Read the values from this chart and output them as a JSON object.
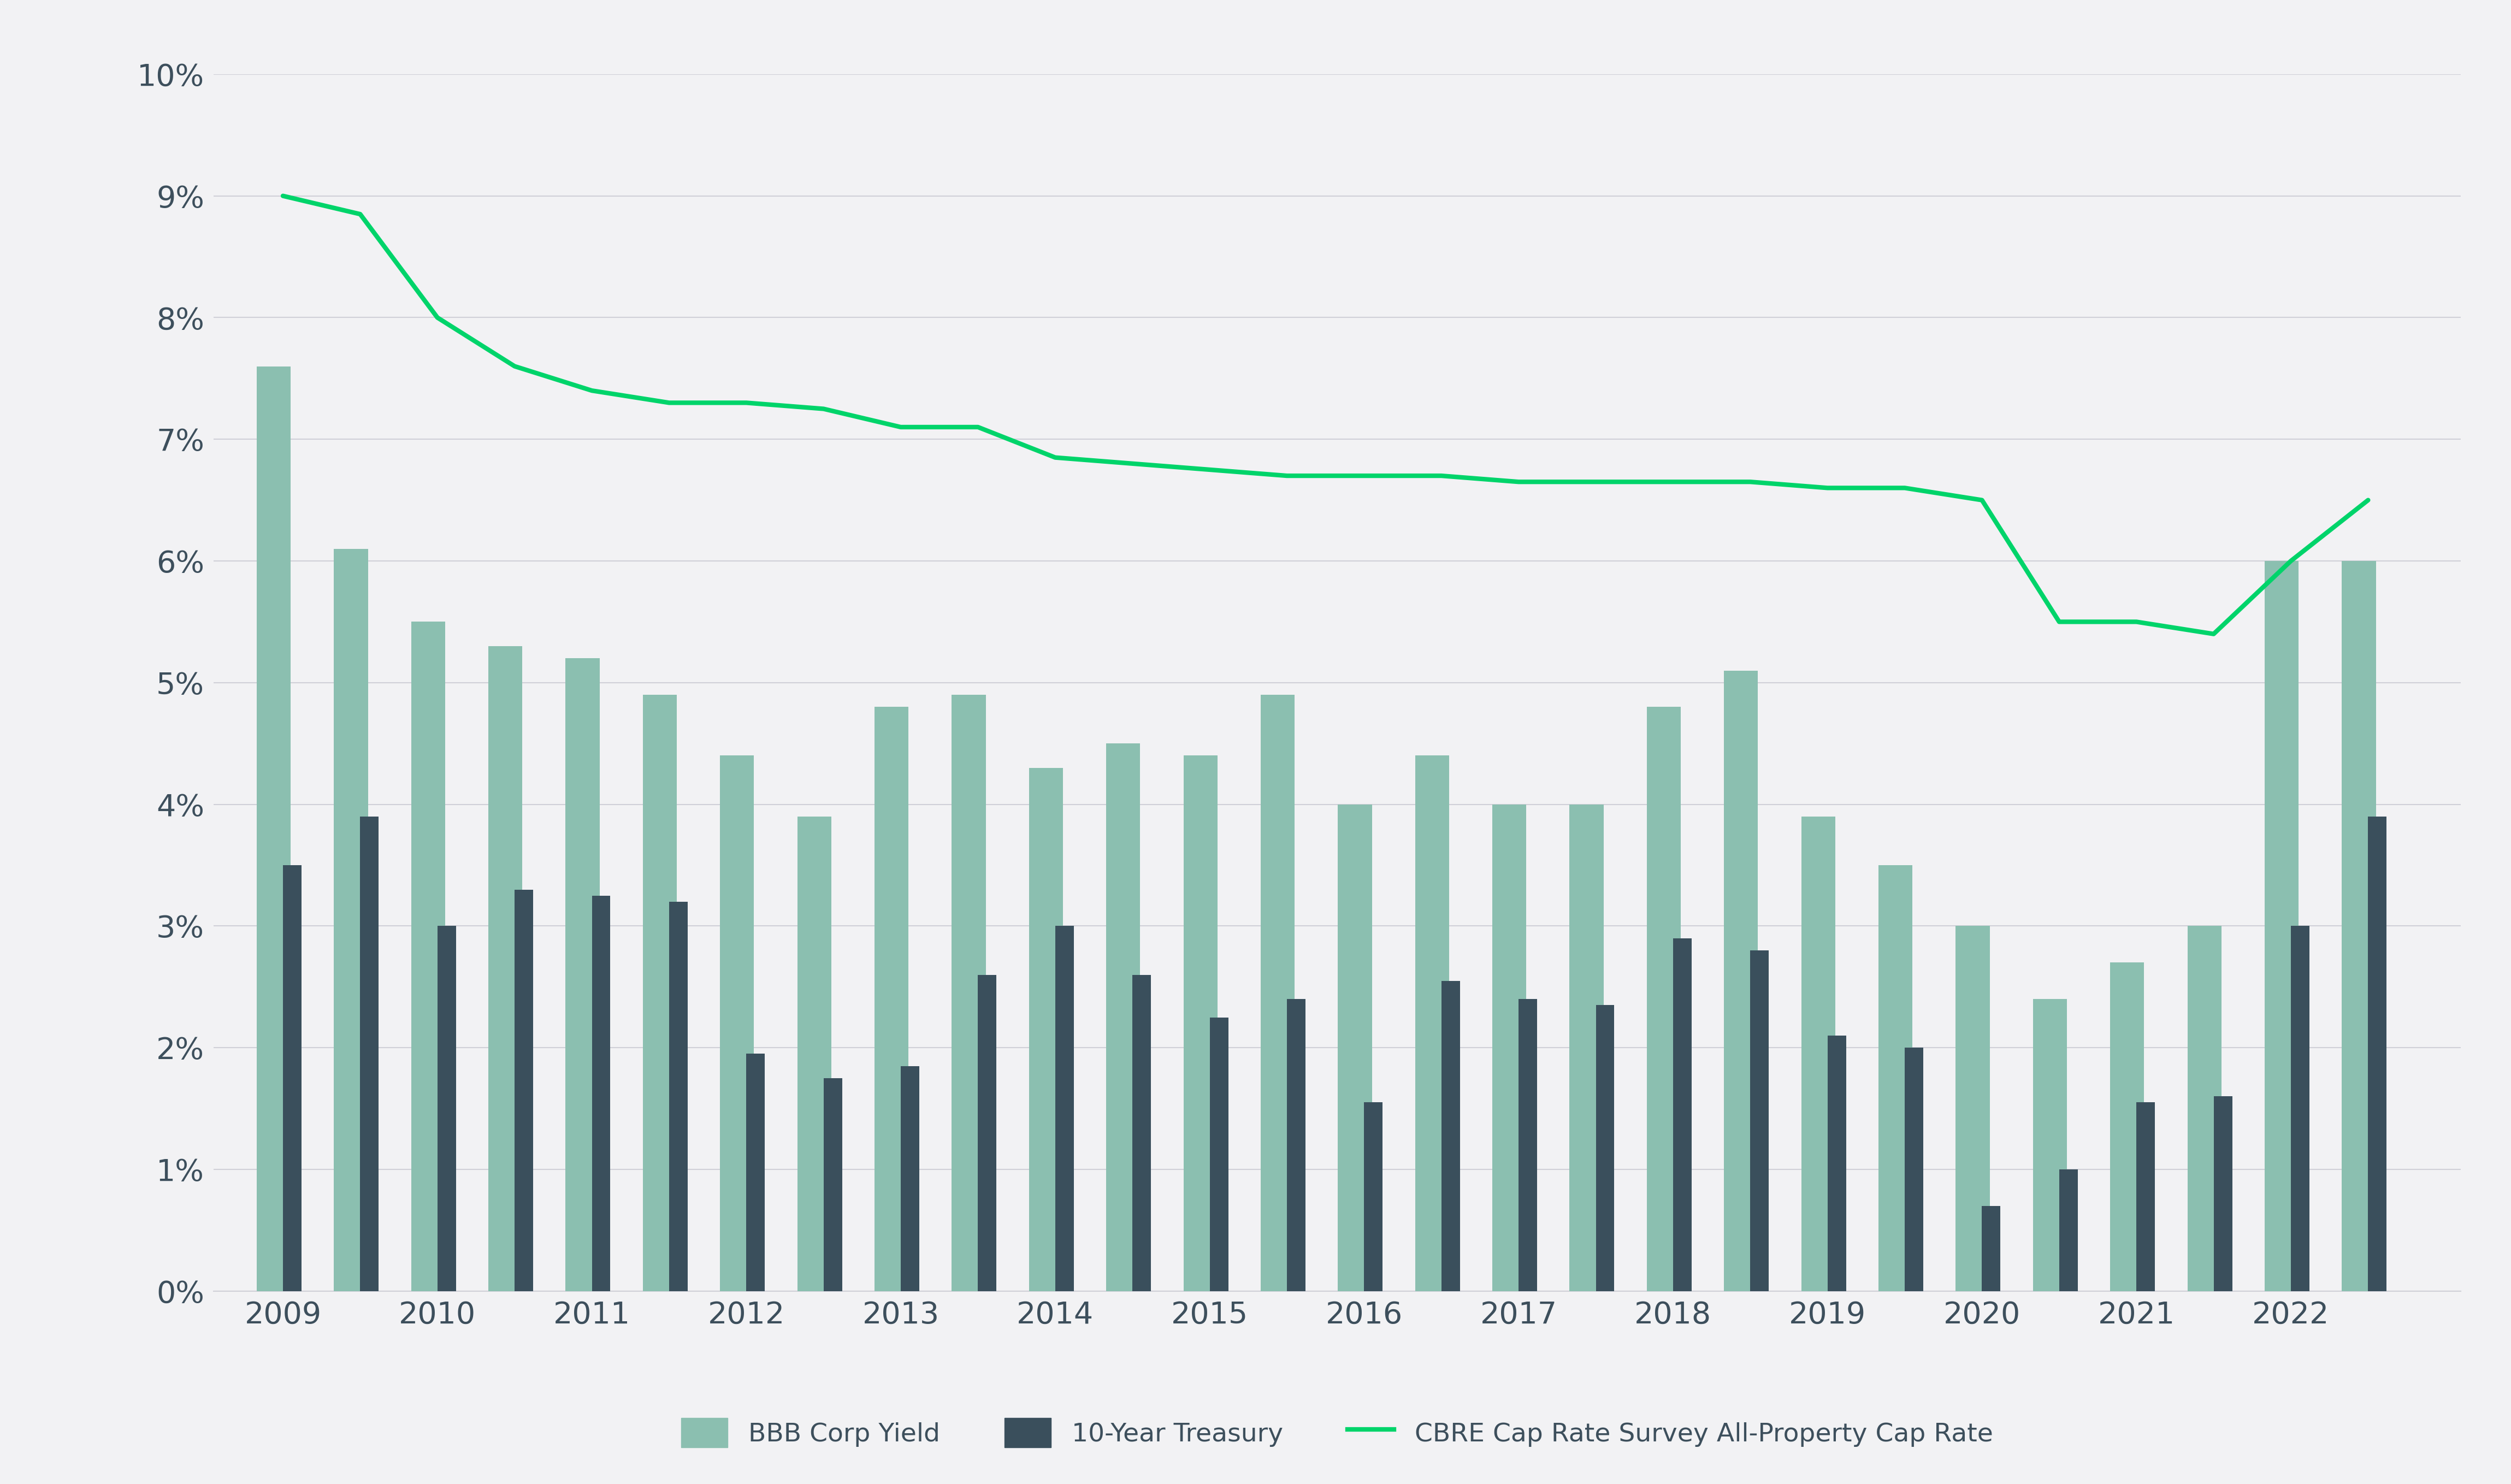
{
  "background_color": "#f2f2f4",
  "top_bar_color": "#1a2e4a",
  "bbb_corp_color": "#8bbfb0",
  "treasury_color": "#3a4f5c",
  "cap_rate_color": "#00d46a",
  "half_years": [
    2009.0,
    2009.5,
    2010.0,
    2010.5,
    2011.0,
    2011.5,
    2012.0,
    2012.5,
    2013.0,
    2013.5,
    2014.0,
    2014.5,
    2015.0,
    2015.5,
    2016.0,
    2016.5,
    2017.0,
    2017.5,
    2018.0,
    2018.5,
    2019.0,
    2019.5,
    2020.0,
    2020.5,
    2021.0,
    2021.5,
    2022.0,
    2022.5
  ],
  "bbb_corp": [
    7.6,
    6.1,
    5.5,
    5.3,
    5.2,
    4.9,
    4.4,
    3.9,
    4.8,
    4.9,
    4.3,
    4.5,
    4.4,
    4.9,
    4.0,
    4.4,
    4.0,
    4.0,
    4.8,
    5.1,
    3.9,
    3.5,
    3.0,
    2.4,
    2.7,
    3.0,
    6.0,
    6.0
  ],
  "treasury_10yr": [
    3.5,
    3.9,
    3.0,
    3.3,
    3.25,
    3.2,
    1.95,
    1.75,
    1.85,
    2.6,
    3.0,
    2.6,
    2.25,
    2.4,
    1.55,
    2.55,
    2.4,
    2.35,
    2.9,
    2.8,
    2.1,
    2.0,
    0.7,
    1.0,
    1.55,
    1.6,
    3.0,
    3.9
  ],
  "cap_rate": [
    9.0,
    8.85,
    8.0,
    7.6,
    7.4,
    7.3,
    7.3,
    7.25,
    7.1,
    7.1,
    6.85,
    6.8,
    6.75,
    6.7,
    6.7,
    6.7,
    6.65,
    6.65,
    6.65,
    6.65,
    6.6,
    6.6,
    6.5,
    5.5,
    5.5,
    5.4,
    6.0,
    6.5
  ],
  "ylim": [
    0,
    10
  ],
  "ytick_labels": [
    "0%",
    "1%",
    "2%",
    "3%",
    "4%",
    "5%",
    "6%",
    "7%",
    "8%",
    "9%",
    "10%"
  ],
  "ytick_values": [
    0,
    1,
    2,
    3,
    4,
    5,
    6,
    7,
    8,
    9,
    10
  ],
  "year_ticks": [
    2009,
    2010,
    2011,
    2012,
    2013,
    2014,
    2015,
    2016,
    2017,
    2018,
    2019,
    2020,
    2021,
    2022
  ],
  "legend_labels": [
    "BBB Corp Yield",
    "10-Year Treasury",
    "CBRE Cap Rate Survey All-Property Cap Rate"
  ],
  "axis_label_color": "#3d4f5c",
  "grid_color": "#d0d0d8",
  "fig_bg": "#f2f2f4"
}
